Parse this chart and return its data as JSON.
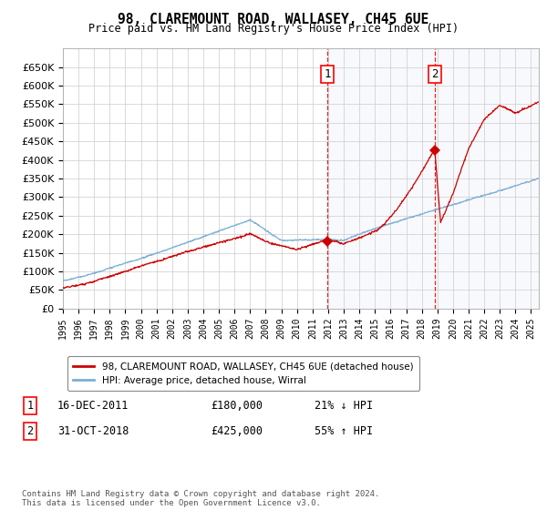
{
  "title": "98, CLAREMOUNT ROAD, WALLASEY, CH45 6UE",
  "subtitle": "Price paid vs. HM Land Registry's House Price Index (HPI)",
  "legend_line1": "98, CLAREMOUNT ROAD, WALLASEY, CH45 6UE (detached house)",
  "legend_line2": "HPI: Average price, detached house, Wirral",
  "annotation1_date": "16-DEC-2011",
  "annotation1_price": "£180,000",
  "annotation1_hpi": "21% ↓ HPI",
  "annotation2_date": "31-OCT-2018",
  "annotation2_price": "£425,000",
  "annotation2_hpi": "55% ↑ HPI",
  "footnote": "Contains HM Land Registry data © Crown copyright and database right 2024.\nThis data is licensed under the Open Government Licence v3.0.",
  "property_color": "#cc0000",
  "hpi_color": "#7bafd4",
  "background_color": "#ffffff",
  "grid_color": "#cccccc",
  "highlight_color": "#dce6f4",
  "ylim": [
    0,
    700000
  ],
  "yticks": [
    0,
    50000,
    100000,
    150000,
    200000,
    250000,
    300000,
    350000,
    400000,
    450000,
    500000,
    550000,
    600000,
    650000
  ],
  "sale1_x": 2011.96,
  "sale1_y": 180000,
  "sale2_x": 2018.83,
  "sale2_y": 425000,
  "xmin": 1995,
  "xmax": 2025.5
}
